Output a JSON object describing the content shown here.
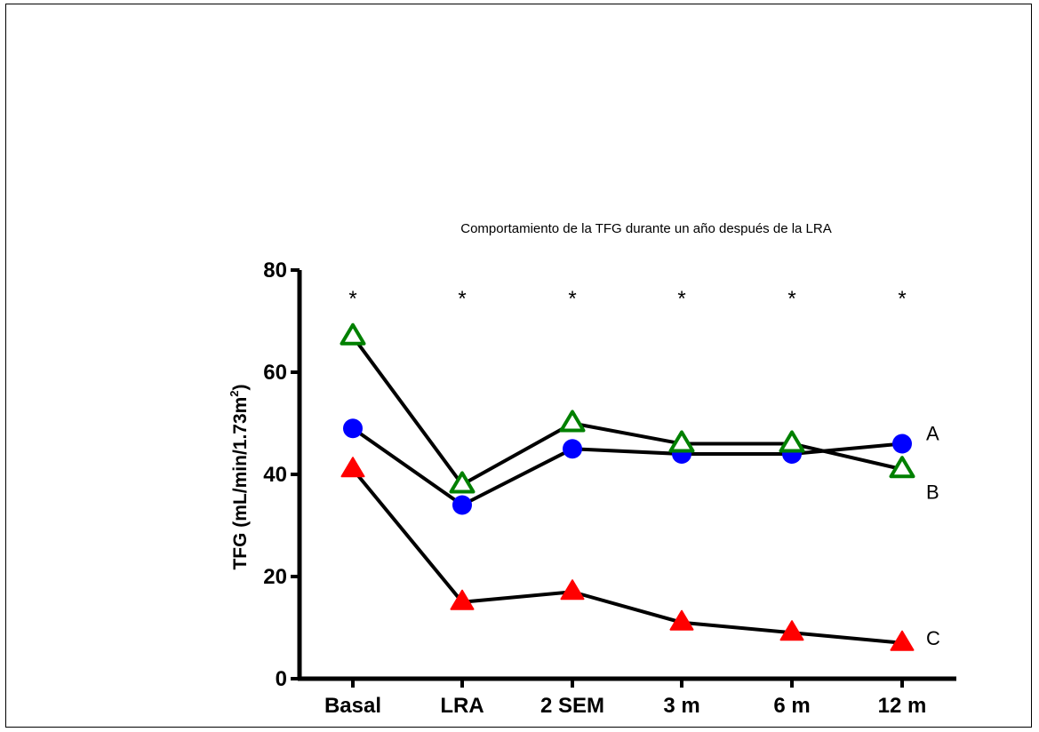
{
  "chart_data": {
    "type": "line",
    "title": "Comportamiento de la TFG durante un año después de la LRA",
    "ylabel_main": "TFG (mL/min/1.73m",
    "ylabel_sup": "2",
    "ylabel_close": ")",
    "xlabel": "",
    "categories": [
      "Basal",
      "LRA",
      "2 SEM",
      "3 m",
      "6 m",
      "12 m"
    ],
    "ylim": [
      0,
      80
    ],
    "yticks": [
      0,
      20,
      40,
      60,
      80
    ],
    "significance_marks": [
      "*",
      "*",
      "*",
      "*",
      "*",
      "*"
    ],
    "grid": false,
    "series": [
      {
        "name": "A",
        "marker": "circle",
        "color": "#0000ff",
        "values": [
          49,
          34,
          45,
          44,
          44,
          46
        ]
      },
      {
        "name": "B",
        "marker": "triangle-open",
        "color": "#008000",
        "values": [
          67,
          38,
          50,
          46,
          46,
          41
        ]
      },
      {
        "name": "C",
        "marker": "triangle",
        "color": "#ff0000",
        "values": [
          41,
          15,
          17,
          11,
          9,
          7
        ]
      }
    ]
  },
  "colors": {
    "line": "#000000",
    "axis": "#000000"
  }
}
